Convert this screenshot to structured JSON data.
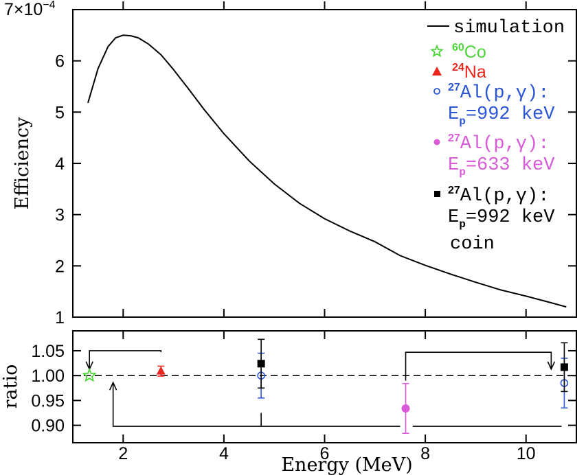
{
  "chart_data": [
    {
      "type": "line",
      "panel": "efficiency",
      "ylabel": "Efficiency",
      "scale_text": "7×10",
      "scale_exp": "−4",
      "xlim": [
        1.0,
        11.0
      ],
      "ylim": [
        1.0,
        7.0
      ],
      "yticks": [
        1,
        2,
        3,
        4,
        5,
        6
      ],
      "ytick_labels": [
        "1",
        "2",
        "3",
        "4",
        "5",
        "6"
      ],
      "series": [
        {
          "name": "simulation",
          "color": "#000000",
          "x": [
            1.3,
            1.5,
            1.7,
            1.85,
            2.0,
            2.15,
            2.3,
            2.5,
            2.75,
            3.0,
            3.3,
            3.6,
            4.0,
            4.5,
            5.0,
            5.5,
            6.0,
            6.5,
            7.0,
            7.5,
            8.0,
            8.5,
            9.0,
            9.5,
            10.0,
            10.5,
            10.8
          ],
          "y": [
            5.18,
            5.85,
            6.28,
            6.45,
            6.5,
            6.49,
            6.45,
            6.33,
            6.12,
            5.83,
            5.45,
            5.06,
            4.58,
            4.05,
            3.6,
            3.22,
            2.92,
            2.68,
            2.47,
            2.2,
            2.01,
            1.84,
            1.68,
            1.53,
            1.41,
            1.28,
            1.2
          ]
        }
      ],
      "legend": [
        {
          "symbol": "line",
          "color": "#000000",
          "text": "simulation"
        },
        {
          "symbol": "star",
          "color": "#4cd438",
          "sup": "60",
          "text": "Co"
        },
        {
          "symbol": "triangle",
          "color": "#e8261c",
          "sup": "24",
          "text": "Na"
        },
        {
          "symbol": "open-circle",
          "color": "#2c56d6",
          "sup": "27",
          "text": "Al(p,γ):",
          "line2_main": "E",
          "line2_sub": "p",
          "line2_rest": "=992 keV"
        },
        {
          "symbol": "filled-circle",
          "color": "#d95bd9",
          "sup": "27",
          "text": "Al(p,γ):",
          "line2_main": "E",
          "line2_sub": "p",
          "line2_rest": "=633 keV"
        },
        {
          "symbol": "square",
          "color": "#000000",
          "sup": "27",
          "text": "Al(p,γ):",
          "line2_main": "E",
          "line2_sub": "p",
          "line2_rest": "=992 keV",
          "line3": "coin"
        }
      ]
    },
    {
      "type": "scatter",
      "panel": "ratio",
      "xlabel": "Energy (MeV)",
      "ylabel": "ratio",
      "xlim": [
        1.0,
        11.0
      ],
      "ylim": [
        0.865,
        1.09
      ],
      "xticks": [
        2,
        4,
        6,
        8,
        10
      ],
      "xtick_labels": [
        "2",
        "4",
        "6",
        "8",
        "10"
      ],
      "yticks": [
        0.9,
        0.95,
        1.0,
        1.05
      ],
      "ytick_labels": [
        "0.90",
        "0.95",
        "1.00",
        "1.05"
      ],
      "reference_line": 1.0,
      "points": [
        {
          "series": "60Co",
          "symbol": "star",
          "color": "#4cd438",
          "x": 1.33,
          "y": 1.0,
          "err": 0.0
        },
        {
          "series": "24Na",
          "symbol": "triangle",
          "color": "#e8261c",
          "x": 2.75,
          "y": 1.009,
          "err": 0.01
        },
        {
          "series": "27Al(p,γ) Ep=992 keV",
          "symbol": "open-circle",
          "color": "#2c56d6",
          "x": 4.74,
          "y": 1.0,
          "err": 0.045
        },
        {
          "series": "27Al(p,γ) Ep=992 keV coin",
          "symbol": "square",
          "color": "#000000",
          "x": 4.74,
          "y": 1.024,
          "err": 0.049
        },
        {
          "series": "27Al(p,γ) Ep=633 keV",
          "symbol": "filled-circle",
          "color": "#d95bd9",
          "x": 7.61,
          "y": 0.934,
          "err": 0.05
        },
        {
          "series": "27Al(p,γ) Ep=992 keV",
          "symbol": "open-circle",
          "color": "#2c56d6",
          "x": 10.76,
          "y": 0.985,
          "err": 0.05
        },
        {
          "series": "27Al(p,γ) Ep=992 keV coin",
          "symbol": "square",
          "color": "#000000",
          "x": 10.76,
          "y": 1.017,
          "err": 0.049
        }
      ],
      "connectors": [
        {
          "kind": "bracket-top",
          "x_from": 2.75,
          "x_to": 1.33,
          "y_top": 1.05,
          "y_arrow_end": 1.013,
          "arrow_at": "to"
        },
        {
          "kind": "bracket-top",
          "x_from": 7.61,
          "x_to": 10.5,
          "y_top": 1.047,
          "y_arrow_end": 1.013,
          "arrow_at": "to"
        },
        {
          "kind": "bracket-bottom",
          "x_left": 1.8,
          "x_right": 10.76,
          "x_mid": 4.74,
          "x_gap_start": 7.5,
          "x_gap_end": 7.75,
          "y_bottom": 0.898,
          "y_arrow_end": 0.986,
          "arrow_at": "left"
        }
      ]
    }
  ]
}
